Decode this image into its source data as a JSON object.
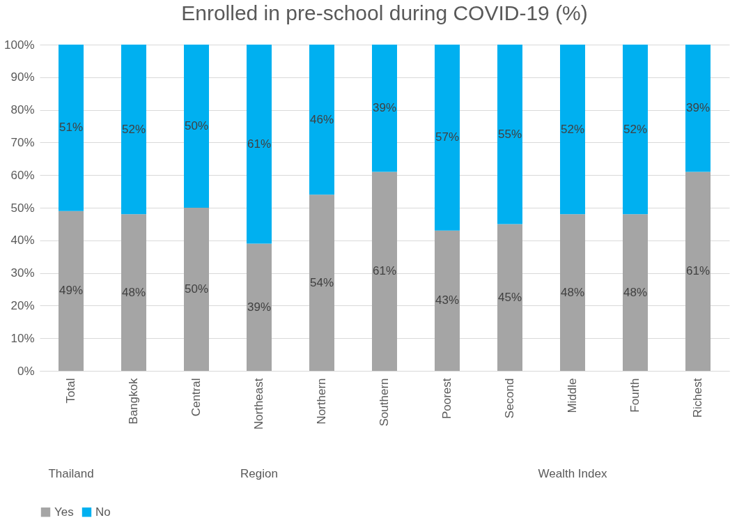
{
  "chart_data": {
    "type": "bar",
    "title": "Enrolled in pre-school during COVID-19 (%)",
    "stacked": true,
    "categories": [
      "Total",
      "Bangkok",
      "Central",
      "Northeast",
      "Northern",
      "Southern",
      "Poorest",
      "Second",
      "Middle",
      "Fourth",
      "Richest"
    ],
    "series": [
      {
        "name": "Yes",
        "color": "#a5a5a5",
        "values": [
          49,
          48,
          50,
          39,
          54,
          61,
          43,
          45,
          48,
          48,
          61
        ],
        "value_labels": [
          "49%",
          "48%",
          "50%",
          "39%",
          "54%",
          "61%",
          "43%",
          "45%",
          "48%",
          "48%",
          "61%"
        ]
      },
      {
        "name": "No",
        "color": "#00b0f0",
        "values": [
          51,
          52,
          50,
          61,
          46,
          39,
          57,
          55,
          52,
          52,
          39
        ],
        "value_labels": [
          "51%",
          "52%",
          "50%",
          "61%",
          "46%",
          "39%",
          "57%",
          "55%",
          "52%",
          "52%",
          "39%"
        ]
      }
    ],
    "ylim": [
      0,
      100
    ],
    "yticks": [
      {
        "value": 0,
        "label": "0%"
      },
      {
        "value": 10,
        "label": "10%"
      },
      {
        "value": 20,
        "label": "20%"
      },
      {
        "value": 30,
        "label": "30%"
      },
      {
        "value": 40,
        "label": "40%"
      },
      {
        "value": 50,
        "label": "50%"
      },
      {
        "value": 60,
        "label": "60%"
      },
      {
        "value": 70,
        "label": "70%"
      },
      {
        "value": 80,
        "label": "80%"
      },
      {
        "value": 90,
        "label": "90%"
      },
      {
        "value": 100,
        "label": "100%"
      }
    ],
    "grid": true,
    "legend": "bottom",
    "annotations": [
      "Thailand",
      "Region",
      "Wealth Index"
    ]
  }
}
